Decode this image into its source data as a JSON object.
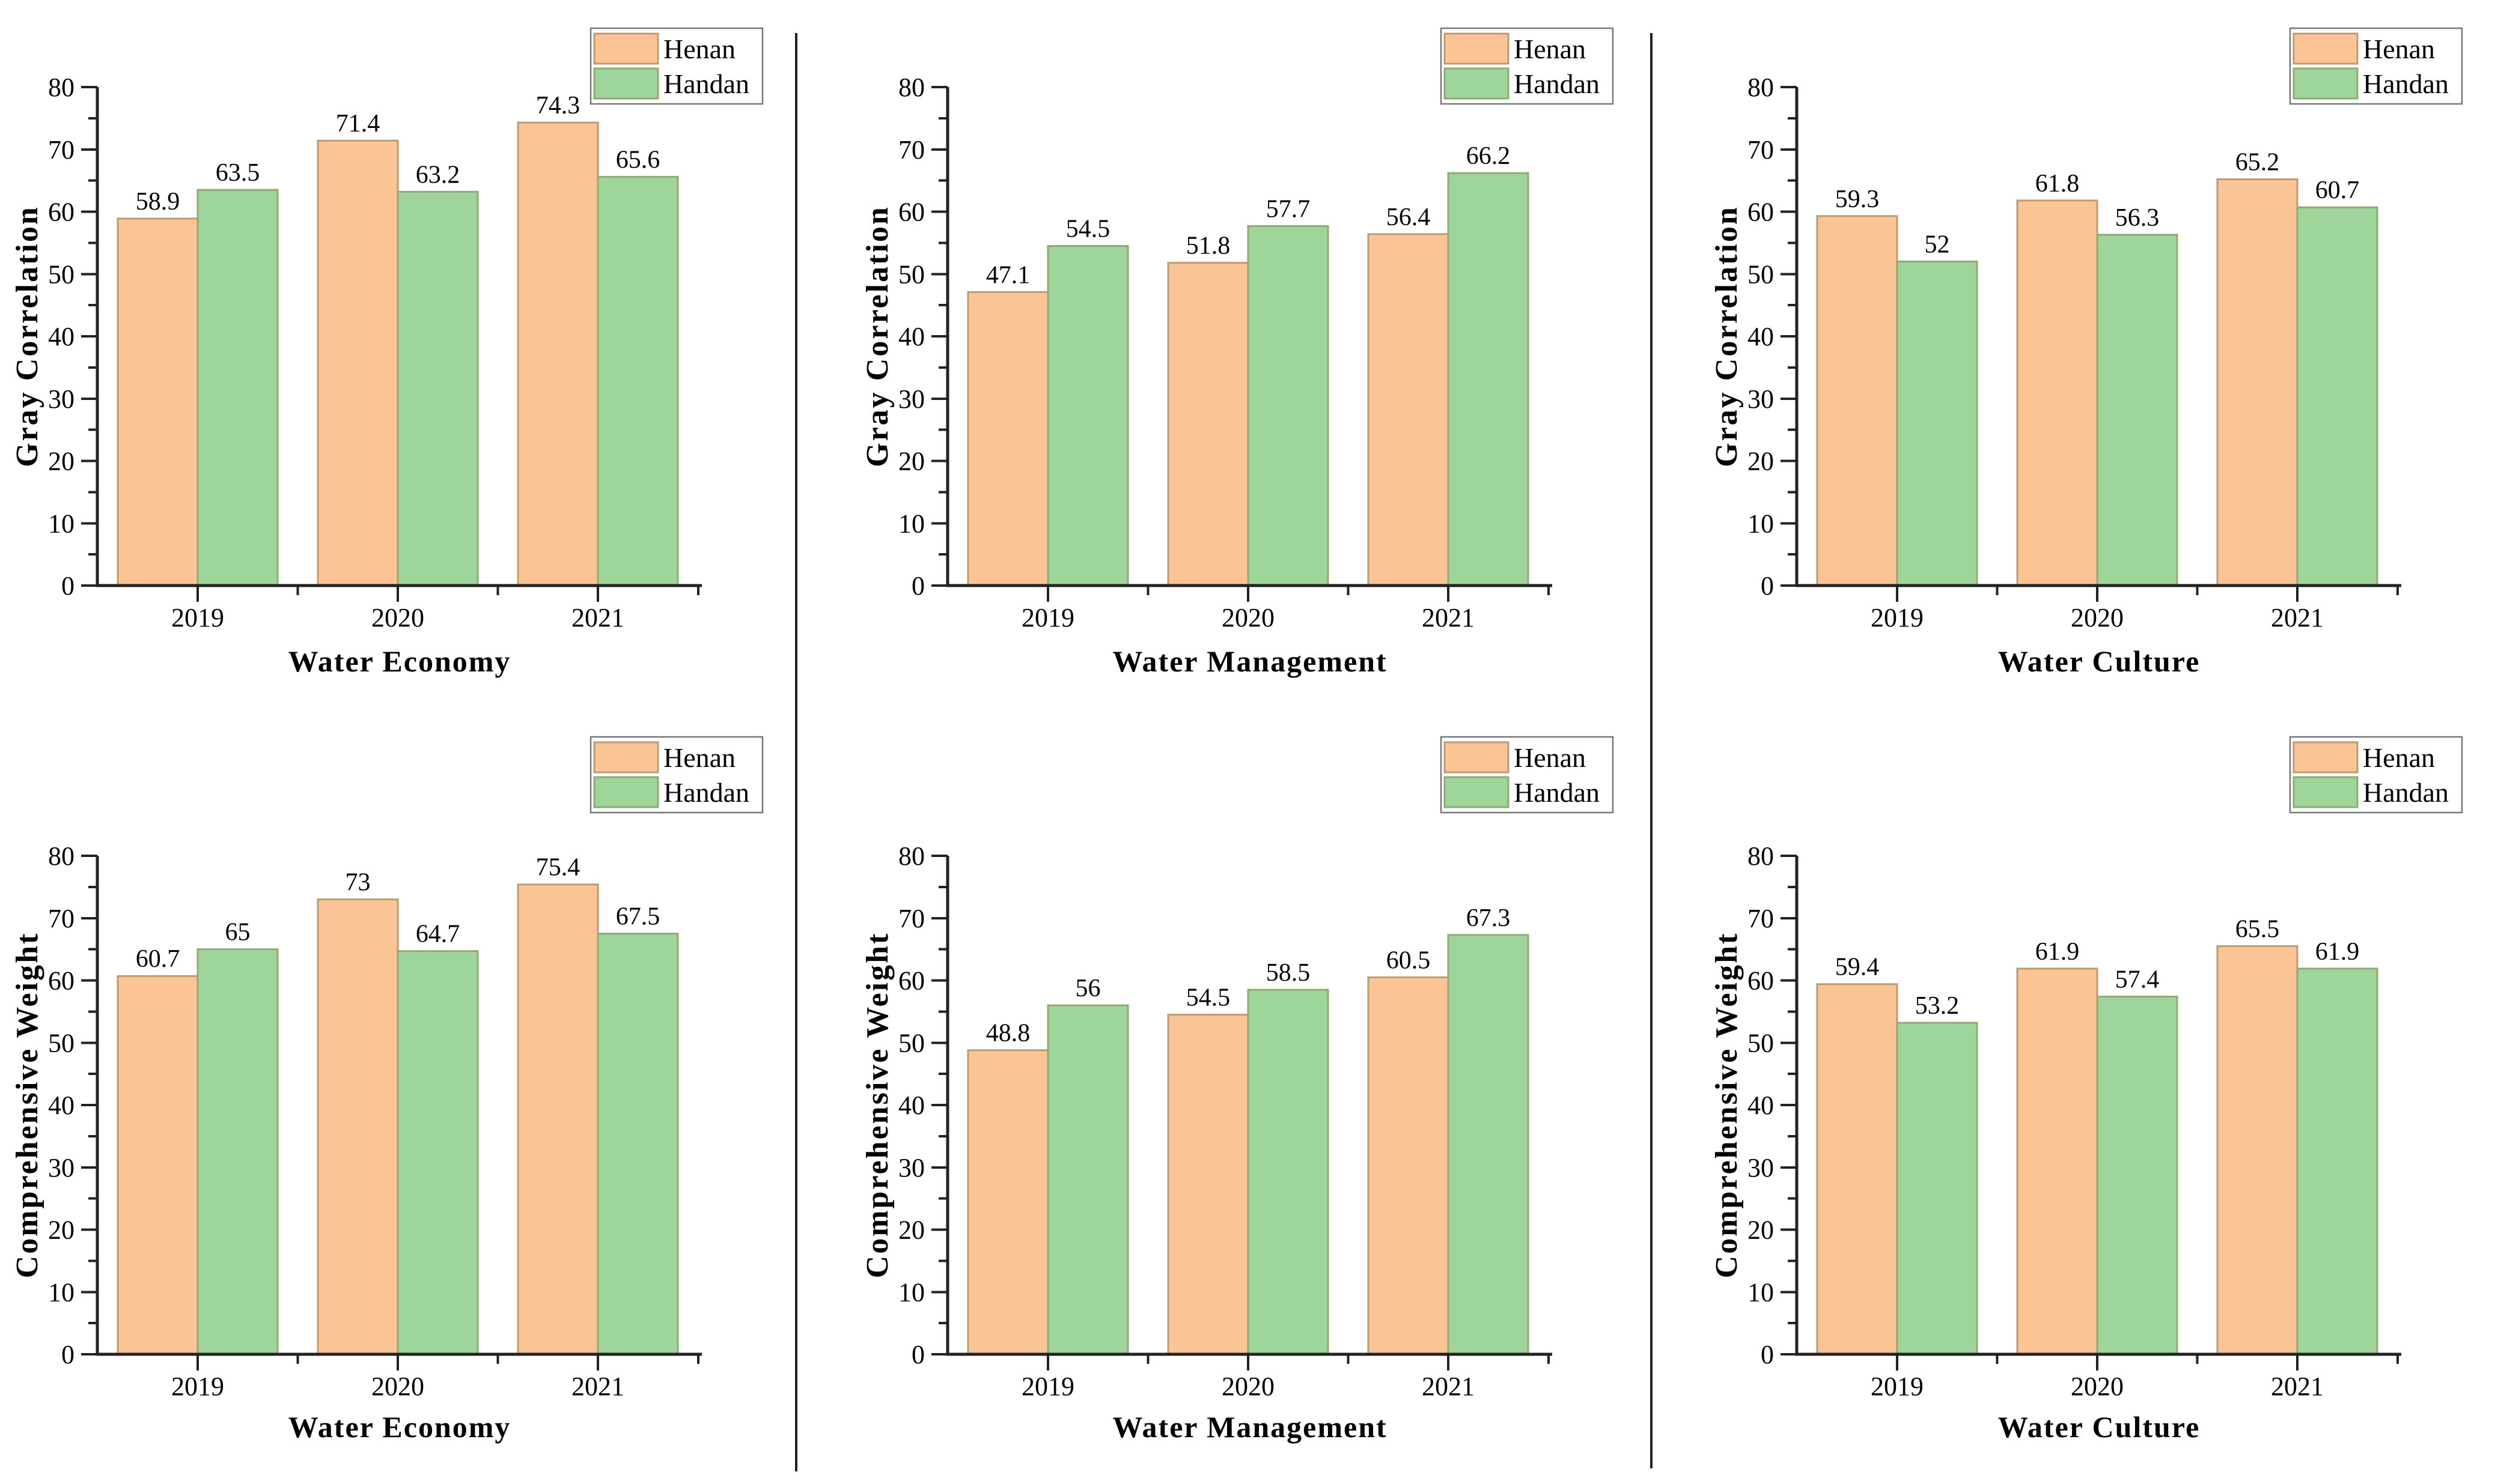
{
  "figure": {
    "background": "#ffffff",
    "rows": 2,
    "columns": 3
  },
  "axes": {
    "y_ticks": [
      "0",
      "10",
      "20",
      "30",
      "40",
      "50",
      "60",
      "70",
      "80"
    ],
    "categories": [
      "2019",
      "2020",
      "2021"
    ],
    "ylim": [
      0,
      80
    ]
  },
  "series_style": [
    {
      "name": "Henan",
      "fill": "#FBC495",
      "edge": "#BC9A72"
    },
    {
      "name": "Handan",
      "fill": "#9DD59A",
      "edge": "#92A973"
    }
  ],
  "divider_color": "#222222",
  "chart_data": [
    {
      "type": "bar",
      "xlabel": "Water Economy",
      "ylabel": "Gray Correlation",
      "categories": [
        "2019",
        "2020",
        "2021"
      ],
      "series": [
        {
          "name": "Henan",
          "values": [
            58.9,
            71.4,
            74.3
          ]
        },
        {
          "name": "Handan",
          "values": [
            63.5,
            63.2,
            65.6
          ]
        }
      ],
      "ylim": [
        0,
        80
      ],
      "y_tick_step": 10,
      "grid": false,
      "legend_position": "top-right"
    },
    {
      "type": "bar",
      "xlabel": "Water Management",
      "ylabel": "Gray Correlation",
      "categories": [
        "2019",
        "2020",
        "2021"
      ],
      "series": [
        {
          "name": "Henan",
          "values": [
            47.1,
            51.8,
            56.4
          ]
        },
        {
          "name": "Handan",
          "values": [
            54.5,
            57.7,
            66.2
          ]
        }
      ],
      "ylim": [
        0,
        80
      ],
      "y_tick_step": 10,
      "grid": false,
      "legend_position": "top-right"
    },
    {
      "type": "bar",
      "xlabel": "Water Culture",
      "ylabel": "Gray Correlation",
      "categories": [
        "2019",
        "2020",
        "2021"
      ],
      "series": [
        {
          "name": "Henan",
          "values": [
            59.3,
            61.8,
            65.2
          ]
        },
        {
          "name": "Handan",
          "values": [
            52,
            56.3,
            60.7
          ]
        }
      ],
      "ylim": [
        0,
        80
      ],
      "y_tick_step": 10,
      "grid": false,
      "legend_position": "top-right"
    },
    {
      "type": "bar",
      "xlabel": "Water Economy",
      "ylabel": "Comprehensive Weight",
      "categories": [
        "2019",
        "2020",
        "2021"
      ],
      "series": [
        {
          "name": "Henan",
          "values": [
            60.7,
            73,
            75.4
          ]
        },
        {
          "name": "Handan",
          "values": [
            65,
            64.7,
            67.5
          ]
        }
      ],
      "ylim": [
        0,
        80
      ],
      "y_tick_step": 10,
      "grid": false,
      "legend_position": "top-right"
    },
    {
      "type": "bar",
      "xlabel": "Water Management",
      "ylabel": "Comprehensive Weight",
      "categories": [
        "2019",
        "2020",
        "2021"
      ],
      "series": [
        {
          "name": "Henan",
          "values": [
            48.8,
            54.5,
            60.5
          ]
        },
        {
          "name": "Handan",
          "values": [
            56,
            58.5,
            67.3
          ]
        }
      ],
      "ylim": [
        0,
        80
      ],
      "y_tick_step": 10,
      "grid": false,
      "legend_position": "top-right"
    },
    {
      "type": "bar",
      "xlabel": "Water Culture",
      "ylabel": "Comprehensive Weight",
      "categories": [
        "2019",
        "2020",
        "2021"
      ],
      "series": [
        {
          "name": "Henan",
          "values": [
            59.4,
            61.9,
            65.5
          ]
        },
        {
          "name": "Handan",
          "values": [
            53.2,
            57.4,
            61.9
          ]
        }
      ],
      "ylim": [
        0,
        80
      ],
      "y_tick_step": 10,
      "grid": false,
      "legend_position": "top-right"
    }
  ]
}
